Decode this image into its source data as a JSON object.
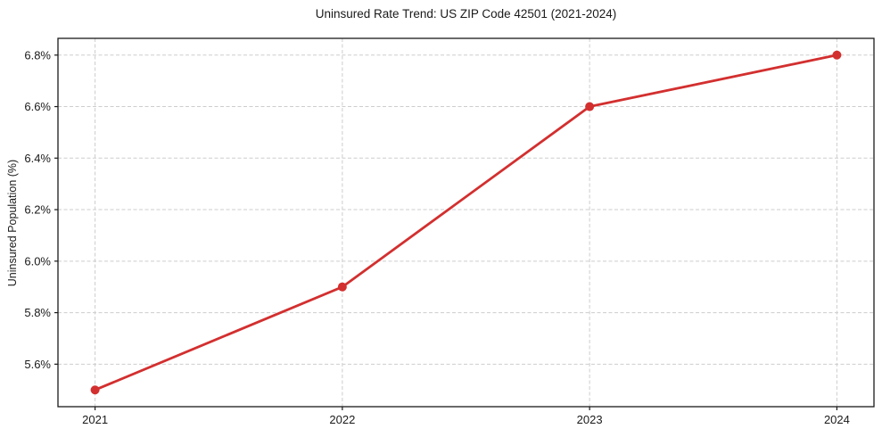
{
  "chart_data": {
    "type": "line",
    "title": "Uninsured Rate Trend: US ZIP Code 42501 (2021-2024)",
    "xlabel": "",
    "ylabel": "Uninsured Population (%)",
    "x": [
      2021,
      2022,
      2023,
      2024
    ],
    "values": [
      5.5,
      5.9,
      6.6,
      6.8
    ],
    "xtick_labels": [
      "2021",
      "2022",
      "2023",
      "2024"
    ],
    "yticks": [
      5.6,
      5.8,
      6.0,
      6.2,
      6.4,
      6.6,
      6.8
    ],
    "ytick_labels": [
      "5.6%",
      "5.8%",
      "6.0%",
      "6.2%",
      "6.4%",
      "6.6%",
      "6.8%"
    ],
    "xlim": [
      2020.85,
      2024.15
    ],
    "ylim": [
      5.435,
      6.865
    ],
    "grid": true,
    "grid_style": "dashed",
    "legend_position": "none",
    "colors": {
      "line": "#d32f2f",
      "marker": "#d32f2f",
      "grid": "#cdcdcd",
      "spine": "#1a1a1a",
      "text": "#1a1a1a",
      "background": "#ffffff"
    }
  }
}
